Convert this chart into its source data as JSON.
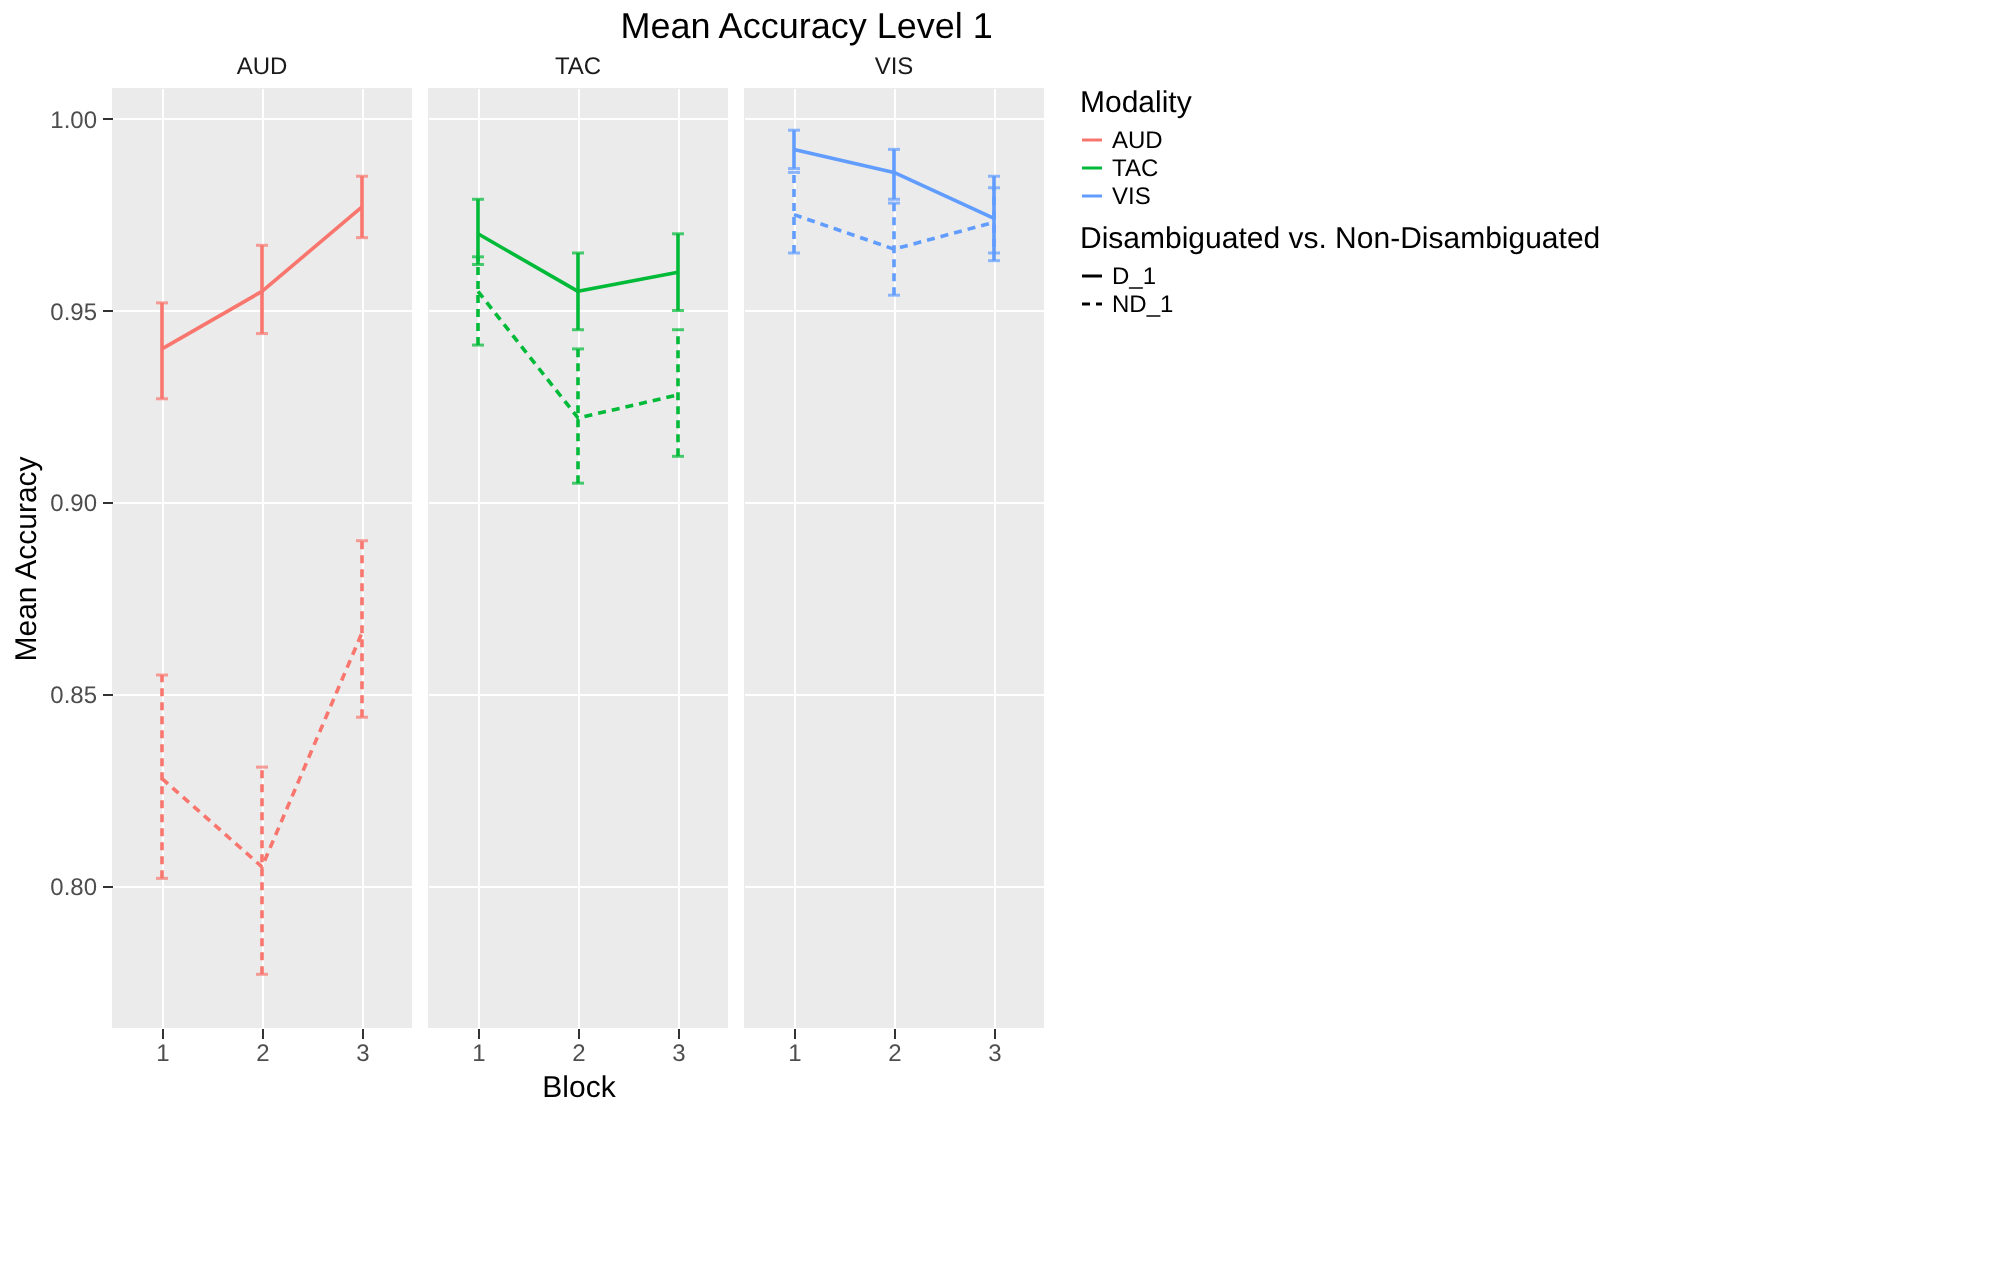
{
  "chart_data": [
    {
      "type": "line",
      "subtitle": "AUD",
      "ylabel": "Mean Accuracy",
      "legend_title": "Disambiguated vs. Non-Disambiguated",
      "legend": "right",
      "grid": true,
      "categories": [
        "1",
        "2",
        "3"
      ],
      "ylim": [
        0.763,
        1.008
      ],
      "yticks": [
        {
          "value": 0.8,
          "label": "0.80"
        },
        {
          "value": 0.85,
          "label": "0.85"
        },
        {
          "value": 0.9,
          "label": "0.90"
        },
        {
          "value": 0.95,
          "label": "0.95"
        },
        {
          "value": 1.0,
          "label": "1.00"
        }
      ],
      "series": [
        {
          "name": "D_1",
          "color": "#f8766d",
          "line_style": "solid",
          "values": [
            0.94,
            0.955,
            0.977
          ],
          "errors": [
            [
              0.927,
              0.952
            ],
            [
              0.944,
              0.967
            ],
            [
              0.969,
              0.985
            ]
          ]
        },
        {
          "name": "ND_1",
          "color": "#f8766d",
          "line_style": "dashed",
          "values": [
            0.828,
            0.805,
            0.866
          ],
          "errors": [
            [
              0.802,
              0.855
            ],
            [
              0.777,
              0.831
            ],
            [
              0.844,
              0.89
            ]
          ]
        }
      ]
    },
    {
      "type": "line",
      "title": "Mean Accuracy Level 1",
      "subtitle": "TAC",
      "xlabel": "Block",
      "legend_title": "Modality",
      "grid": true,
      "tick_labels": "x",
      "categories": [
        "1",
        "2",
        "3"
      ],
      "ylim": [
        0.763,
        1.008
      ],
      "yticks": [
        {
          "value": 0.8,
          "label": null
        },
        {
          "value": 0.85,
          "label": null
        },
        {
          "value": 0.9,
          "label": null
        },
        {
          "value": 0.95,
          "label": null
        },
        {
          "value": 1.0,
          "label": null
        }
      ],
      "series": [
        {
          "color": "#00ba38",
          "line_style": "solid",
          "values": [
            0.97,
            0.955,
            0.96
          ],
          "errors": [
            [
              0.962,
              0.979
            ],
            [
              0.945,
              0.965
            ],
            [
              0.95,
              0.97
            ]
          ]
        },
        {
          "color": "#00ba38",
          "line_style": "dashed",
          "values": [
            0.955,
            0.922,
            0.928
          ],
          "errors": [
            [
              0.941,
              0.964
            ],
            [
              0.905,
              0.94
            ],
            [
              0.912,
              0.945
            ]
          ]
        }
      ]
    },
    {
      "type": "line",
      "subtitle": "VIS",
      "grid": true,
      "tick_labels": "x",
      "categories": [
        "1",
        "2",
        "3"
      ],
      "ylim": [
        0.763,
        1.008
      ],
      "yticks": [
        {
          "value": 0.8,
          "label": null
        },
        {
          "value": 0.85,
          "label": null
        },
        {
          "value": 0.9,
          "label": null
        },
        {
          "value": 0.95,
          "label": null
        },
        {
          "value": 1.0,
          "label": null
        }
      ],
      "series": [
        {
          "color": "#619cff",
          "line_style": "solid",
          "values": [
            0.992,
            0.986,
            0.974
          ],
          "errors": [
            [
              0.987,
              0.997
            ],
            [
              0.979,
              0.992
            ],
            [
              0.965,
              0.985
            ]
          ]
        },
        {
          "color": "#619cff",
          "line_style": "dashed",
          "values": [
            0.975,
            0.966,
            0.973
          ],
          "errors": [
            [
              0.965,
              0.986
            ],
            [
              0.954,
              0.978
            ],
            [
              0.963,
              0.982
            ]
          ]
        }
      ]
    }
  ]
}
